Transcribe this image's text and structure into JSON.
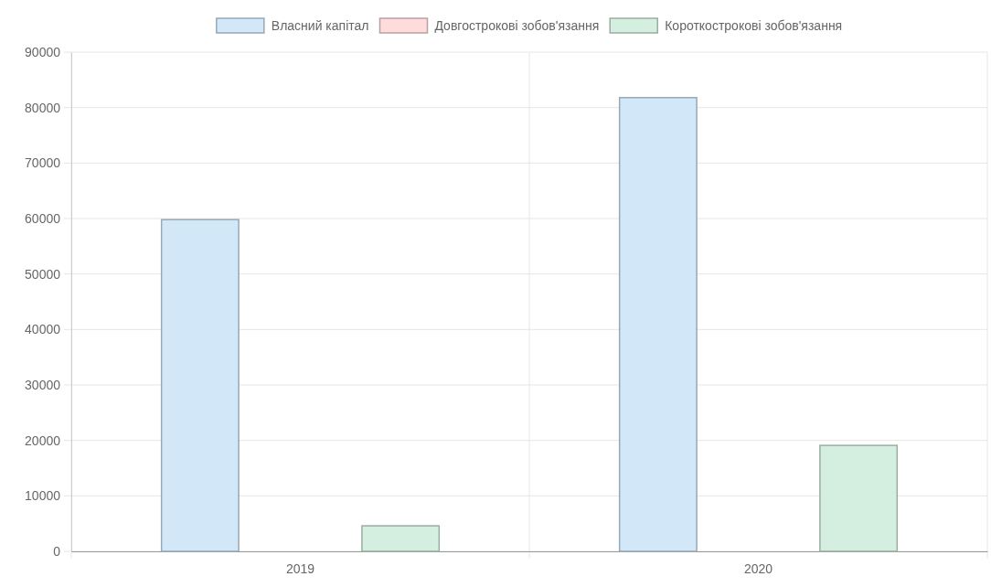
{
  "chart_data": {
    "type": "bar",
    "categories": [
      "2019",
      "2020"
    ],
    "series": [
      {
        "name": "Власний капітал",
        "color": "#d2e8f8",
        "values": [
          59800,
          81800
        ]
      },
      {
        "name": "Довгострокові зобов'язання",
        "color": "#ffdcdc",
        "values": [
          0,
          0
        ]
      },
      {
        "name": "Короткострокові зобов'язання",
        "color": "#d4eedf",
        "values": [
          4600,
          19100
        ]
      }
    ],
    "ylim": [
      0,
      90000
    ],
    "yticks": [
      0,
      10000,
      20000,
      30000,
      40000,
      50000,
      60000,
      70000,
      80000,
      90000
    ],
    "grid": true,
    "legend": "top"
  }
}
